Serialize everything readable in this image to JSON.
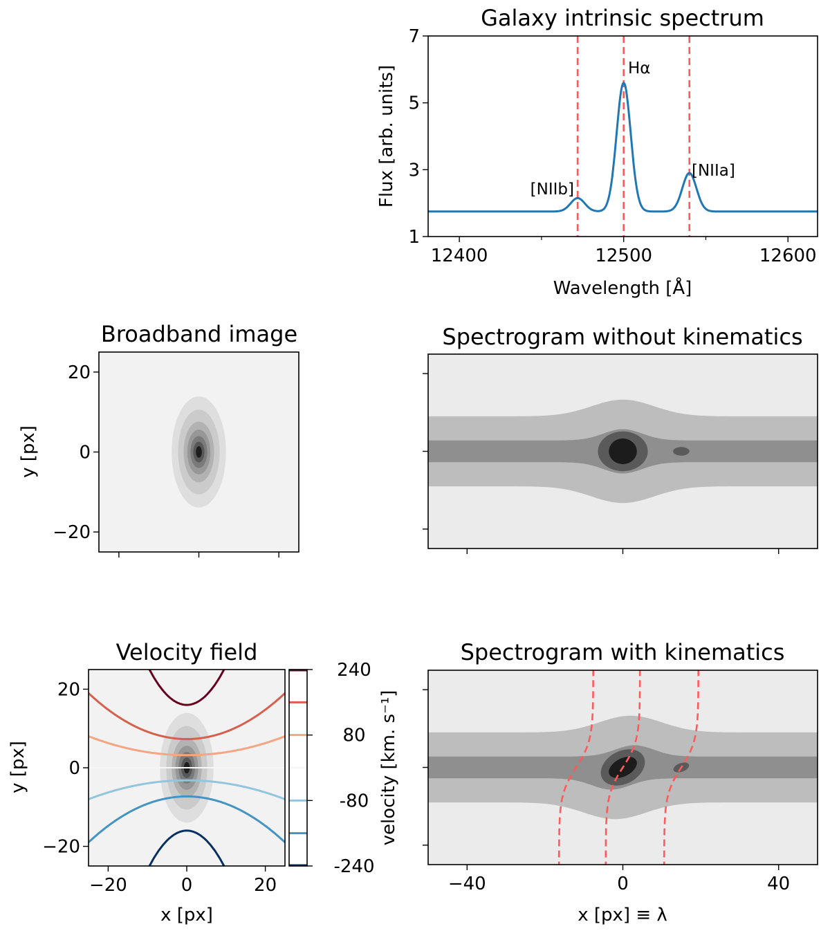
{
  "chart_data": [
    {
      "type": "line",
      "title": "Galaxy intrinsic spectrum",
      "xlabel": "Wavelength [Å]",
      "ylabel": "Flux [arb. units]",
      "xlim": [
        12381,
        12618
      ],
      "ylim": [
        1,
        7
      ],
      "xticks": [
        "12400",
        "12500",
        "12600"
      ],
      "xtick_values": [
        12400,
        12500,
        12600
      ],
      "xminor_values": [
        12450,
        12550
      ],
      "yticks": [
        "1",
        "3",
        "5",
        "7"
      ],
      "ytick_values": [
        1,
        3,
        5,
        7
      ],
      "continuum": 1.75,
      "line_sigma": 4.3,
      "emission_lines": [
        {
          "label": "[NIIb]",
          "wavelength": 12472,
          "peak": 2.15
        },
        {
          "label": "Hα",
          "wavelength": 12500,
          "peak": 5.6
        },
        {
          "label": "[NIIa]",
          "wavelength": 12540,
          "peak": 2.9
        }
      ],
      "series_color": "#1f77b4",
      "marker_color": "#ff5a5a"
    },
    {
      "type": "heatmap",
      "title": "Broadband image",
      "ylabel": "y [px]",
      "xlim": [
        -25,
        25
      ],
      "ylim": [
        -25,
        25
      ],
      "xtick_values": [
        -20,
        0,
        20
      ],
      "yticks": [
        "−20",
        "0",
        "20"
      ],
      "ytick_values": [
        -20,
        0,
        20
      ],
      "galaxy_center": [
        0,
        0
      ],
      "contour_colors": [
        "#f2f2f2",
        "#dedede",
        "#cbcbcb",
        "#b2b2b2",
        "#979797",
        "#7a7a7a",
        "#575757",
        "#1e1e1e"
      ]
    },
    {
      "type": "heatmap",
      "title": "Spectrogram without kinematics",
      "xlim": [
        -50,
        50
      ],
      "ylim": [
        -25,
        25
      ],
      "xtick_values": [
        -40,
        0,
        40
      ],
      "ytick_values": [
        -20,
        0,
        20
      ],
      "contour_colors": [
        "#ebebeb",
        "#bdbdbd",
        "#8f8f8f",
        "#5a5a5a",
        "#1c1c1c"
      ]
    },
    {
      "type": "heatmap",
      "title": "Velocity field",
      "xlabel": "x [px]",
      "ylabel": "y [px]",
      "xlim": [
        -25,
        25
      ],
      "ylim": [
        -25,
        25
      ],
      "xticks": [
        "−20",
        "0",
        "20"
      ],
      "xtick_values": [
        -20,
        0,
        20
      ],
      "yticks": [
        "−20",
        "0",
        "20"
      ],
      "ytick_values": [
        -20,
        0,
        20
      ],
      "colorbar": {
        "label": "velocity [km. s⁻¹]",
        "range": [
          -240,
          240
        ],
        "ticks": [
          "240",
          "80",
          "-80",
          "-240"
        ],
        "tick_values": [
          240,
          80,
          -80,
          -240
        ]
      },
      "contour_levels": [
        {
          "value": 240,
          "color": "#67001f"
        },
        {
          "value": 160,
          "color": "#d6604d"
        },
        {
          "value": 80,
          "color": "#f4a582"
        },
        {
          "value": 0,
          "color": "#f7f7f7"
        },
        {
          "value": -80,
          "color": "#92c5de"
        },
        {
          "value": -160,
          "color": "#4393c3"
        },
        {
          "value": -240,
          "color": "#053061"
        }
      ]
    },
    {
      "type": "heatmap",
      "title": "Spectrogram with kinematics",
      "xlabel": "x [px] ≡ λ",
      "xlim": [
        -50,
        50
      ],
      "ylim": [
        -25,
        25
      ],
      "xticks": [
        "−40",
        "0",
        "40"
      ],
      "xtick_values": [
        -40,
        0,
        40
      ],
      "ytick_values": [
        -20,
        0,
        20
      ],
      "line_positions": [
        -12,
        0,
        15
      ],
      "marker_color": "#ff5a5a"
    }
  ]
}
